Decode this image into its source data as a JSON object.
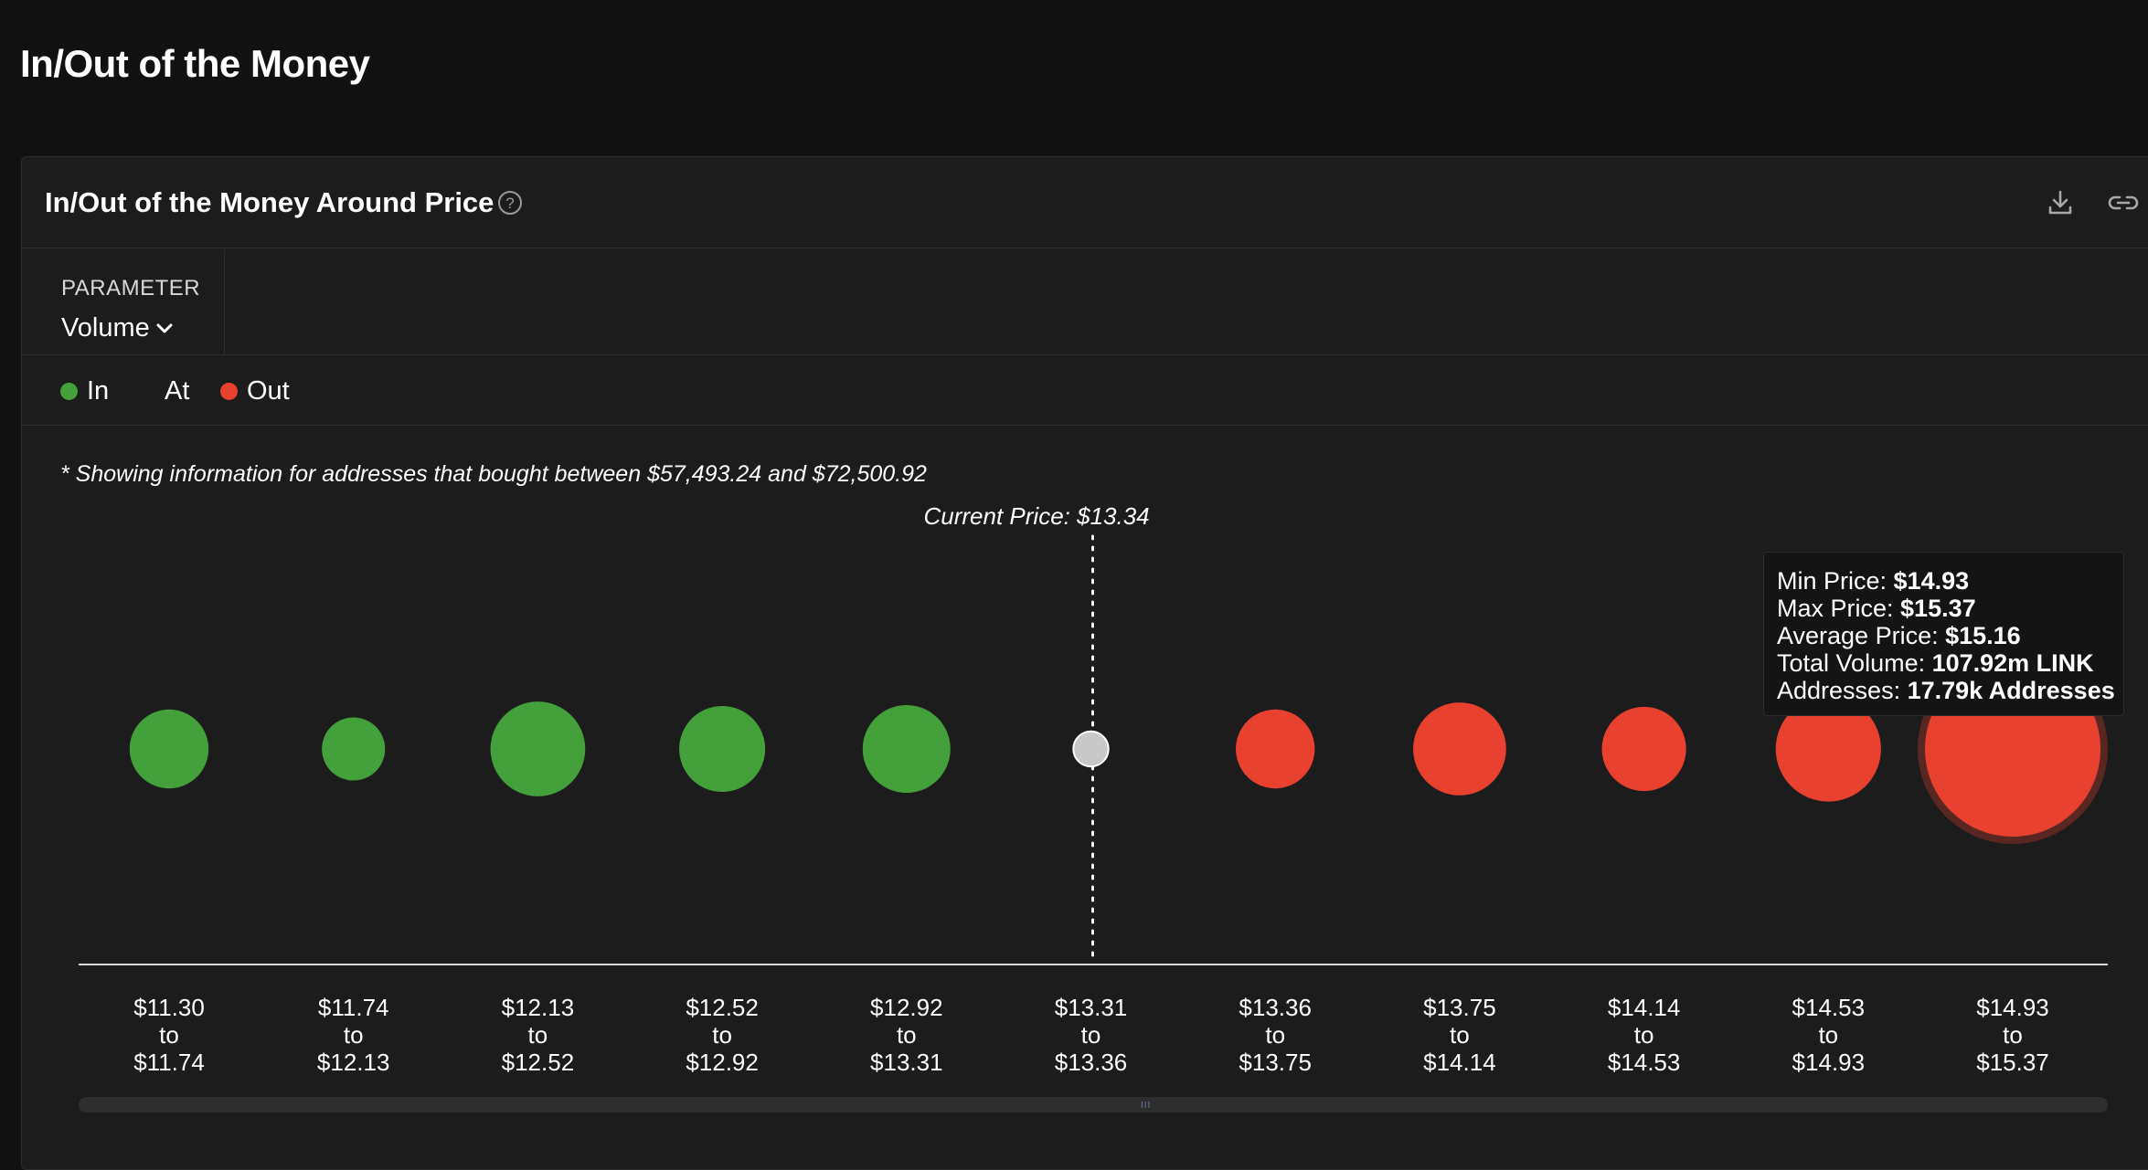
{
  "page": {
    "title": "In/Out of the Money"
  },
  "card": {
    "title": "In/Out of the Money Around Price",
    "icons": {
      "help": "help-circle-icon",
      "download": "download-icon",
      "link": "link-icon"
    }
  },
  "parameter": {
    "label": "PARAMETER",
    "value": "Volume"
  },
  "legend": [
    {
      "label": "In",
      "color": "#43a03a"
    },
    {
      "label": "At",
      "color": ""
    },
    {
      "label": "Out",
      "color": "#e8412f"
    }
  ],
  "note": "* Showing information for addresses that bought between $57,493.24 and $72,500.92",
  "tooltip": {
    "rows": [
      {
        "label": "Min Price:",
        "value": "$14.93"
      },
      {
        "label": "Max Price:",
        "value": "$15.37"
      },
      {
        "label": "Average Price:",
        "value": "$15.16"
      },
      {
        "label": "Total Volume:",
        "value": "107.92m LINK"
      },
      {
        "label": "Addresses:",
        "value": "17.79k Addresses"
      }
    ]
  },
  "chart_data": {
    "type": "bubble",
    "current_price_label": "Current Price: $13.34",
    "current_price_index": 5,
    "colors": {
      "in": "#43a03a",
      "at": "#c8c8c8",
      "out": "#e8412f"
    },
    "bins": [
      {
        "from": "$11.30",
        "to": "$11.74",
        "status": "in",
        "size": 0.45
      },
      {
        "from": "$11.74",
        "to": "$12.13",
        "status": "in",
        "size": 0.36
      },
      {
        "from": "$12.13",
        "to": "$12.52",
        "status": "in",
        "size": 0.54
      },
      {
        "from": "$12.52",
        "to": "$12.92",
        "status": "in",
        "size": 0.49
      },
      {
        "from": "$12.92",
        "to": "$13.31",
        "status": "in",
        "size": 0.5
      },
      {
        "from": "$13.31",
        "to": "$13.36",
        "status": "at",
        "size": 0.2
      },
      {
        "from": "$13.36",
        "to": "$13.75",
        "status": "out",
        "size": 0.45
      },
      {
        "from": "$13.75",
        "to": "$14.14",
        "status": "out",
        "size": 0.53
      },
      {
        "from": "$14.14",
        "to": "$14.53",
        "status": "out",
        "size": 0.48
      },
      {
        "from": "$14.53",
        "to": "$14.93",
        "status": "out",
        "size": 0.6
      },
      {
        "from": "$14.93",
        "to": "$15.37",
        "status": "out",
        "size": 1.0,
        "highlighted": true,
        "total_volume": "107.92m LINK",
        "addresses": "17.79k Addresses"
      }
    ],
    "x_label_connector": "to"
  }
}
